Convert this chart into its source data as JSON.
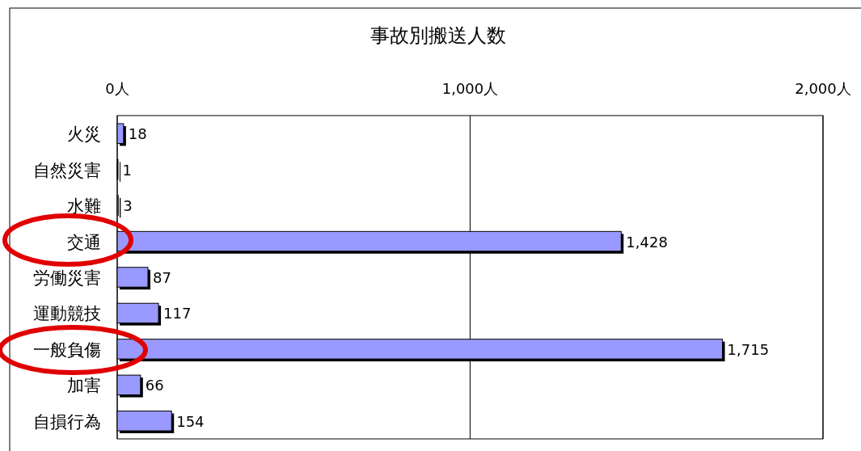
{
  "chart_data": {
    "type": "bar",
    "orientation": "horizontal",
    "title": "事故別搬送人数",
    "categories": [
      "火災",
      "自然災害",
      "水難",
      "交通",
      "労働災害",
      "運動競技",
      "一般負傷",
      "加害",
      "自損行為"
    ],
    "values": [
      18,
      1,
      3,
      1428,
      87,
      117,
      1715,
      66,
      154
    ],
    "value_labels": [
      "18",
      "1",
      "3",
      "1,428",
      "87",
      "117",
      "1,715",
      "66",
      "154"
    ],
    "color": "#9999ff",
    "xlim": [
      0,
      2000
    ],
    "xticks": [
      {
        "value": 0,
        "label": "0人"
      },
      {
        "value": 1000,
        "label": "1,000人"
      },
      {
        "value": 2000,
        "label": "2,000人"
      }
    ],
    "grid": "x"
  }
}
